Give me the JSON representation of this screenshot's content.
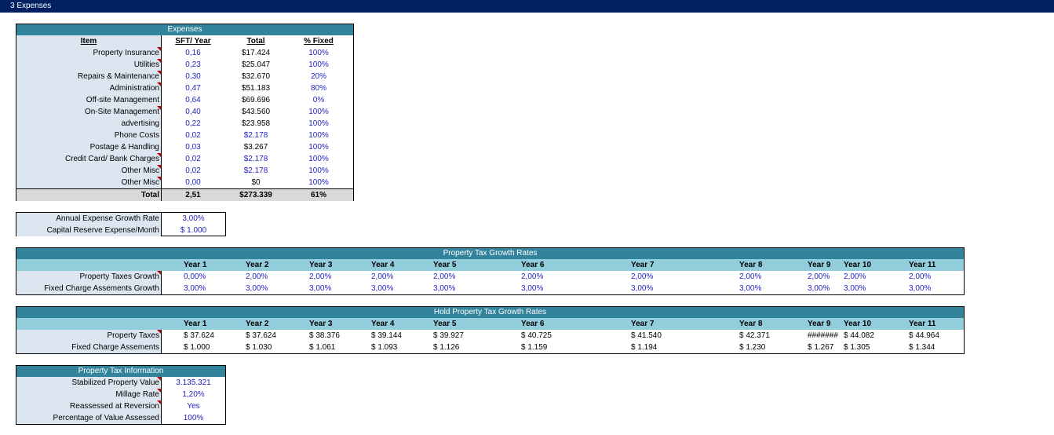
{
  "sheet_title": "3  Expenses",
  "expenses": {
    "title": "Expenses",
    "headers": [
      "Item",
      "SFT/ Year",
      "Total",
      "% Fixed"
    ],
    "rows": [
      {
        "item": "Property Insurance",
        "sft": "0,16",
        "total": "$17.424",
        "fixed": "100%"
      },
      {
        "item": "Utilities",
        "sft": "0,23",
        "total": "$25.047",
        "fixed": "100%"
      },
      {
        "item": "Repairs & Maintenance",
        "sft": "0,30",
        "total": "$32.670",
        "fixed": "20%"
      },
      {
        "item": "Administration",
        "sft": "0,47",
        "total": "$51.183",
        "fixed": "80%"
      },
      {
        "item": "Off-site Management",
        "sft": "0,64",
        "total": "$69.696",
        "fixed": "0%"
      },
      {
        "item": "On-Site Management",
        "sft": "0,40",
        "total": "$43.560",
        "fixed": "100%"
      },
      {
        "item": "advertising",
        "sft": "0,22",
        "total": "$23.958",
        "fixed": "100%"
      },
      {
        "item": "Phone Costs",
        "sft": "0,02",
        "total": "$2.178",
        "fixed": "100%"
      },
      {
        "item": "Postage & Handling",
        "sft": "0,03",
        "total": "$3.267",
        "fixed": "100%"
      },
      {
        "item": "Credit Card/ Bank  Charges",
        "sft": "0,02",
        "total": "$2.178",
        "fixed": "100%"
      },
      {
        "item": "Other Misc",
        "sft": "0,02",
        "total": "$2.178",
        "fixed": "100%"
      },
      {
        "item": "Other Misc",
        "sft": "0,00",
        "total": "$0",
        "fixed": "100%"
      }
    ],
    "total": {
      "label": "Total",
      "sft": "2,51",
      "total": "$273.339",
      "fixed": "61%"
    }
  },
  "growth": {
    "rows": [
      {
        "label": "Annual Expense Growth Rate",
        "value": "3,00%"
      },
      {
        "label": "Capital Reserve Expense/Month",
        "value": "$ 1.000"
      }
    ]
  },
  "tax_growth": {
    "title": "Property  Tax Growth Rates",
    "years": [
      "Year 1",
      "Year 2",
      "Year 3",
      "Year 4",
      "Year 5",
      "Year 6",
      "Year 7",
      "Year 8",
      "Year 9",
      "Year 10",
      "Year 11"
    ],
    "rows": [
      {
        "label": "Property  Taxes Growth",
        "values": [
          "0,00%",
          "2,00%",
          "2,00%",
          "2,00%",
          "2,00%",
          "2,00%",
          "2,00%",
          "2,00%",
          "2,00%",
          "2,00%",
          "2,00%"
        ]
      },
      {
        "label": "Fixed Charge Assements Growth",
        "values": [
          "3,00%",
          "3,00%",
          "3,00%",
          "3,00%",
          "3,00%",
          "3,00%",
          "3,00%",
          "3,00%",
          "3,00%",
          "3,00%",
          "3,00%"
        ]
      }
    ]
  },
  "hold_tax": {
    "title": "Hold Property  Tax Growth Rates",
    "years": [
      "Year 1",
      "Year 2",
      "Year 3",
      "Year 4",
      "Year 5",
      "Year 6",
      "Year 7",
      "Year 8",
      "Year 9",
      "Year 10",
      "Year 11"
    ],
    "rows": [
      {
        "label": "Property  Taxes",
        "values": [
          "$ 37.624",
          "$ 37.624",
          "$ 38.376",
          "$ 39.144",
          "$ 39.927",
          "$ 40.725",
          "$ 41.540",
          "$ 42.371",
          "#######",
          "$ 44.082",
          "$ 44.964"
        ]
      },
      {
        "label": "Fixed Charge Assements",
        "values": [
          "$ 1.000",
          "$ 1.030",
          "$ 1.061",
          "$ 1.093",
          "$ 1.126",
          "$ 1.159",
          "$ 1.194",
          "$ 1.230",
          "$ 1.267",
          "$ 1.305",
          "$ 1.344"
        ]
      }
    ]
  },
  "tax_info": {
    "title": "Property Tax Information",
    "rows": [
      {
        "label": "Stabilized Property Value",
        "value": "3.135.321"
      },
      {
        "label": "Millage Rate",
        "value": "1,20%"
      },
      {
        "label": "Reassessed at Reversion",
        "value": "Yes"
      },
      {
        "label": "Percentage of Value Assessed",
        "value": "100%"
      }
    ]
  }
}
